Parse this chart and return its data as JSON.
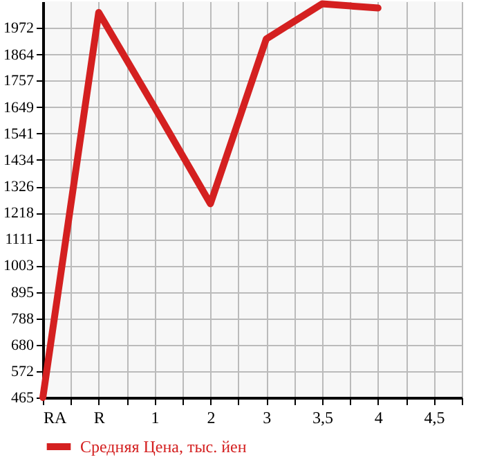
{
  "chart_data": {
    "type": "line",
    "categories": [
      "RA",
      "R",
      "1",
      "2",
      "3",
      "3,5",
      "4",
      "4,5"
    ],
    "series": [
      {
        "name": "Средняя Цена, тыс. йен",
        "color": "#d42020",
        "values": [
          465,
          2035,
          1648,
          1255,
          1927,
          2070,
          2053,
          null
        ]
      }
    ],
    "ylim": [
      465,
      2080
    ],
    "yticks": [
      465,
      572,
      680,
      788,
      895,
      1003,
      1111,
      1218,
      1326,
      1434,
      1541,
      1649,
      1757,
      1864,
      1972
    ],
    "grid": true,
    "legend": "bottom left",
    "marker": "none",
    "line_style": "solid"
  }
}
